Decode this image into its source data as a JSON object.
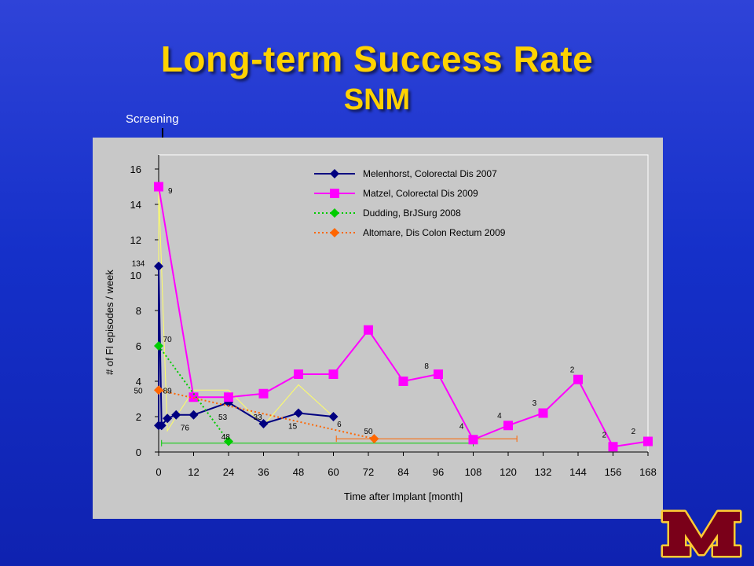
{
  "header": {
    "title": "Long-term Success Rate",
    "subtitle": "SNM"
  },
  "screening_label": "Screening",
  "colors": {
    "background": "#1a33cc",
    "title": "#ffd200",
    "panel": "#c8c8c8",
    "melenhorst": "#000080",
    "matzel": "#ff00ff",
    "dudding": "#00cc00",
    "altomare": "#ff6600",
    "yellow_line": "#ffff66",
    "logo_maroon": "#7a0019",
    "logo_gold": "#ffcc33"
  },
  "logo": {
    "icon": "university-m-logo"
  },
  "chart_data": {
    "type": "line",
    "xlabel": "Time after Implant [month]",
    "ylabel": "# of FI episodes / week",
    "xlim": [
      0,
      168
    ],
    "ylim": [
      0,
      16
    ],
    "xticks": [
      0,
      12,
      24,
      36,
      48,
      60,
      72,
      84,
      96,
      108,
      120,
      132,
      144,
      156,
      168
    ],
    "yticks": [
      0,
      2,
      4,
      6,
      8,
      10,
      12,
      14,
      16
    ],
    "grid": false,
    "legend_position": "top-center",
    "series": [
      {
        "name": "Melenhorst, Colorectal Dis 2007",
        "marker": "diamond",
        "style": "solid",
        "color": "#000080",
        "x": [
          0,
          0,
          1,
          3,
          6,
          12,
          24,
          36,
          48,
          60
        ],
        "y": [
          1.5,
          10.5,
          1.5,
          1.9,
          2.1,
          2.1,
          2.8,
          1.6,
          2.2,
          2.0
        ]
      },
      {
        "name": "Matzel, Colorectal Dis 2009",
        "marker": "square",
        "style": "solid",
        "color": "#ff00ff",
        "x": [
          0,
          12,
          24,
          36,
          48,
          60,
          72,
          84,
          96,
          108,
          120,
          132,
          144,
          156,
          168
        ],
        "y": [
          15.0,
          3.1,
          3.1,
          3.3,
          4.4,
          4.4,
          6.9,
          4.0,
          4.4,
          0.7,
          1.5,
          2.2,
          4.1,
          0.3,
          0.6
        ]
      },
      {
        "name": "Dudding, BrJSurg 2008",
        "marker": "diamond",
        "style": "dotted",
        "color": "#00cc00",
        "x": [
          0,
          24
        ],
        "y": [
          6.0,
          0.6
        ]
      },
      {
        "name": "Altomare, Dis Colon Rectum 2009",
        "marker": "diamond",
        "style": "dotted",
        "color": "#ff6600",
        "x": [
          0,
          74
        ],
        "y": [
          3.5,
          0.75
        ]
      }
    ],
    "extra_lines": [
      {
        "name": "",
        "color": "#ffff66",
        "x": [
          0,
          0,
          3,
          6,
          12,
          24,
          36,
          48,
          60
        ],
        "y": [
          1.5,
          15.0,
          1.2,
          2.0,
          3.5,
          3.5,
          1.5,
          3.8,
          2.0
        ]
      }
    ],
    "followup_ranges": [
      {
        "color": "#00cc00",
        "x": [
          1,
          108
        ],
        "y": 0.5
      },
      {
        "color": "#ff6600",
        "x": [
          61,
          123
        ],
        "y": 0.75
      }
    ],
    "annotations": [
      {
        "text": "9",
        "x": 4,
        "y": 14.8
      },
      {
        "text": "134",
        "x": -7,
        "y": 10.7
      },
      {
        "text": "70",
        "x": 3,
        "y": 6.4
      },
      {
        "text": "50",
        "x": -7,
        "y": 3.5
      },
      {
        "text": "89",
        "x": 3,
        "y": 3.5
      },
      {
        "text": "76",
        "x": 9,
        "y": 1.4
      },
      {
        "text": "53",
        "x": 22,
        "y": 2.0
      },
      {
        "text": "33",
        "x": 34,
        "y": 2.0
      },
      {
        "text": "15",
        "x": 46,
        "y": 1.5
      },
      {
        "text": "6",
        "x": 62,
        "y": 1.6
      },
      {
        "text": "48",
        "x": 23,
        "y": 0.9
      },
      {
        "text": "50",
        "x": 72,
        "y": 1.2
      },
      {
        "text": "8",
        "x": 92,
        "y": 4.9
      },
      {
        "text": "4",
        "x": 104,
        "y": 1.5
      },
      {
        "text": "4",
        "x": 117,
        "y": 2.1
      },
      {
        "text": "3",
        "x": 129,
        "y": 2.8
      },
      {
        "text": "2",
        "x": 142,
        "y": 4.7
      },
      {
        "text": "2",
        "x": 153,
        "y": 1.0
      },
      {
        "text": "2",
        "x": 163,
        "y": 1.2
      }
    ]
  }
}
